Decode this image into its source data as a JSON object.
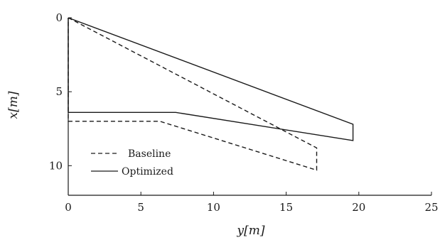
{
  "chart_data": {
    "type": "line",
    "xlabel": "y[m]",
    "ylabel": "x[m]",
    "xlim": [
      0,
      25
    ],
    "ylim": [
      0,
      12
    ],
    "y_inverted": true,
    "x_ticks": [
      "0",
      "5",
      "10",
      "15",
      "20",
      "25"
    ],
    "y_ticks": [
      "0",
      "5",
      "10"
    ],
    "grid": false,
    "legend_position": "bottom-left",
    "series": [
      {
        "name": "Baseline",
        "style": "dashed",
        "color": "#1a1a1a",
        "x": [
          0,
          17.1,
          17.1,
          6.3,
          0,
          0
        ],
        "y": [
          0,
          8.8,
          10.3,
          7.0,
          7.0,
          0
        ]
      },
      {
        "name": "Optimized",
        "style": "solid",
        "color": "#1a1a1a",
        "x": [
          0,
          19.6,
          19.6,
          7.4,
          0,
          0
        ],
        "y": [
          0,
          7.2,
          8.3,
          6.4,
          6.4,
          0
        ]
      }
    ]
  }
}
